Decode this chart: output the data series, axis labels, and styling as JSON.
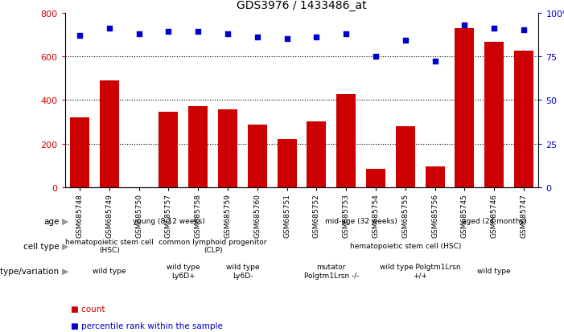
{
  "title": "GDS3976 / 1433486_at",
  "samples": [
    "GSM685748",
    "GSM685749",
    "GSM685750",
    "GSM685757",
    "GSM685758",
    "GSM685759",
    "GSM685760",
    "GSM685751",
    "GSM685752",
    "GSM685753",
    "GSM685754",
    "GSM685755",
    "GSM685756",
    "GSM685745",
    "GSM685746",
    "GSM685747"
  ],
  "counts": [
    320,
    490,
    0,
    345,
    370,
    355,
    285,
    220,
    300,
    425,
    85,
    280,
    95,
    730,
    665,
    625
  ],
  "percentiles": [
    87,
    91,
    88,
    89,
    89,
    88,
    86,
    85,
    86,
    88,
    75,
    84,
    72,
    93,
    91,
    90
  ],
  "bar_color": "#cc0000",
  "dot_color": "#0000cc",
  "ylim_left": [
    0,
    800
  ],
  "ylim_right": [
    0,
    100
  ],
  "yticks_left": [
    0,
    200,
    400,
    600,
    800
  ],
  "yticks_right": [
    0,
    25,
    50,
    75,
    100
  ],
  "age_groups": [
    {
      "label": "young (8-12 weeks)",
      "start": 0,
      "end": 6,
      "color": "#90ee90"
    },
    {
      "label": "mid-age (32 weeks)",
      "start": 7,
      "end": 12,
      "color": "#90ee90"
    },
    {
      "label": "aged (24 months)",
      "start": 13,
      "end": 15,
      "color": "#32cd32"
    }
  ],
  "cell_type_groups": [
    {
      "label": "hematopoietic stem cell\n(HSC)",
      "start": 0,
      "end": 2,
      "color": "#b8b8e0"
    },
    {
      "label": "common lymphoid progenitor\n(CLP)",
      "start": 3,
      "end": 6,
      "color": "#8080c0"
    },
    {
      "label": "hematopoietic stem cell (HSC)",
      "start": 7,
      "end": 15,
      "color": "#b8b8e0"
    }
  ],
  "genotype_groups": [
    {
      "label": "wild type",
      "start": 0,
      "end": 2,
      "color": "#ffcccc"
    },
    {
      "label": "wild type\nLy6D+",
      "start": 3,
      "end": 4,
      "color": "#ff9090"
    },
    {
      "label": "wild type\nLy6D-",
      "start": 5,
      "end": 6,
      "color": "#ff9090"
    },
    {
      "label": "mutator\nPolgtm1Lrsn -/-",
      "start": 7,
      "end": 10,
      "color": "#ffcccc"
    },
    {
      "label": "wild type Polgtm1Lrsn\n+/+",
      "start": 11,
      "end": 12,
      "color": "#ffcccc"
    },
    {
      "label": "wild type",
      "start": 13,
      "end": 15,
      "color": "#ffcccc"
    }
  ],
  "row_labels": [
    "age",
    "cell type",
    "genotype/variation"
  ],
  "n_samples": 16
}
